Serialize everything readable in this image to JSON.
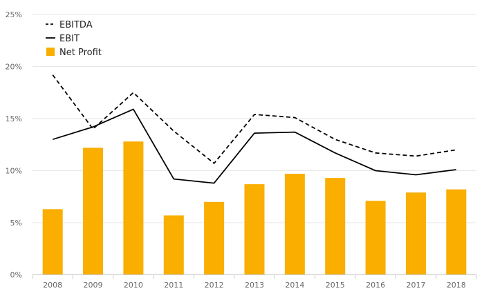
{
  "chart_data": {
    "type": "bar",
    "categories": [
      "2008",
      "2009",
      "2010",
      "2011",
      "2012",
      "2013",
      "2014",
      "2015",
      "2016",
      "2017",
      "2018"
    ],
    "series": [
      {
        "name": "EBITDA",
        "kind": "line",
        "style": "dashed",
        "color": "#000000",
        "values": [
          19.2,
          14.0,
          17.5,
          13.8,
          10.7,
          15.4,
          15.1,
          13.0,
          11.7,
          11.4,
          12.0
        ]
      },
      {
        "name": "EBIT",
        "kind": "line",
        "style": "solid",
        "color": "#000000",
        "values": [
          13.0,
          14.2,
          15.9,
          9.2,
          8.8,
          13.6,
          13.7,
          11.7,
          10.0,
          9.6,
          10.1
        ]
      },
      {
        "name": "Net Profit",
        "kind": "bar",
        "color": "#F9AE00",
        "values": [
          6.3,
          12.2,
          12.8,
          5.7,
          7.0,
          8.7,
          9.7,
          9.3,
          7.1,
          7.9,
          8.2
        ]
      }
    ],
    "yticks": [
      "0%",
      "5%",
      "10%",
      "15%",
      "20%",
      "25%"
    ],
    "ylim": [
      0,
      25
    ],
    "grid": true,
    "legend_position": "top-left",
    "title": "",
    "xlabel": "",
    "ylabel": ""
  }
}
